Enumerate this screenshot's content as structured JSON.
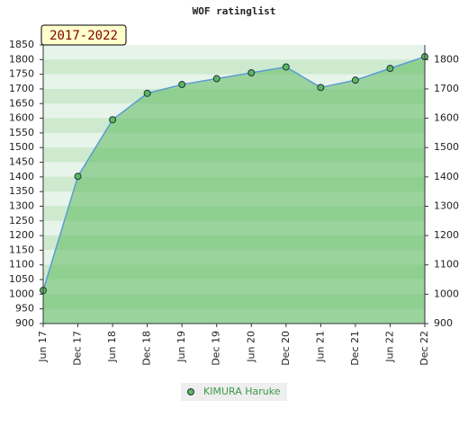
{
  "chart_data": {
    "type": "area",
    "title": "WOF ratinglist",
    "annotation": "2017-2022",
    "categories": [
      "Jun 17",
      "Dec 17",
      "Jun 18",
      "Dec 18",
      "Jun 19",
      "Dec 19",
      "Jun 20",
      "Dec 20",
      "Jun 21",
      "Dec 21",
      "Jun 22",
      "Dec 22"
    ],
    "series": [
      {
        "name": "KIMURA Haruke",
        "color": "#5cb85c",
        "values": [
          1013,
          1402,
          1595,
          1685,
          1715,
          1735,
          1755,
          1775,
          1705,
          1730,
          1770,
          1810
        ]
      }
    ],
    "ylim": [
      900,
      1850
    ],
    "yticks": [
      900,
      950,
      1000,
      1050,
      1100,
      1150,
      1200,
      1250,
      1300,
      1350,
      1400,
      1450,
      1500,
      1550,
      1600,
      1650,
      1700,
      1750,
      1800,
      1850
    ],
    "y2lim": [
      900,
      1850
    ],
    "y2ticks": [
      900,
      1000,
      1100,
      1200,
      1300,
      1400,
      1500,
      1600,
      1700,
      1800
    ],
    "legend": "bottom"
  }
}
